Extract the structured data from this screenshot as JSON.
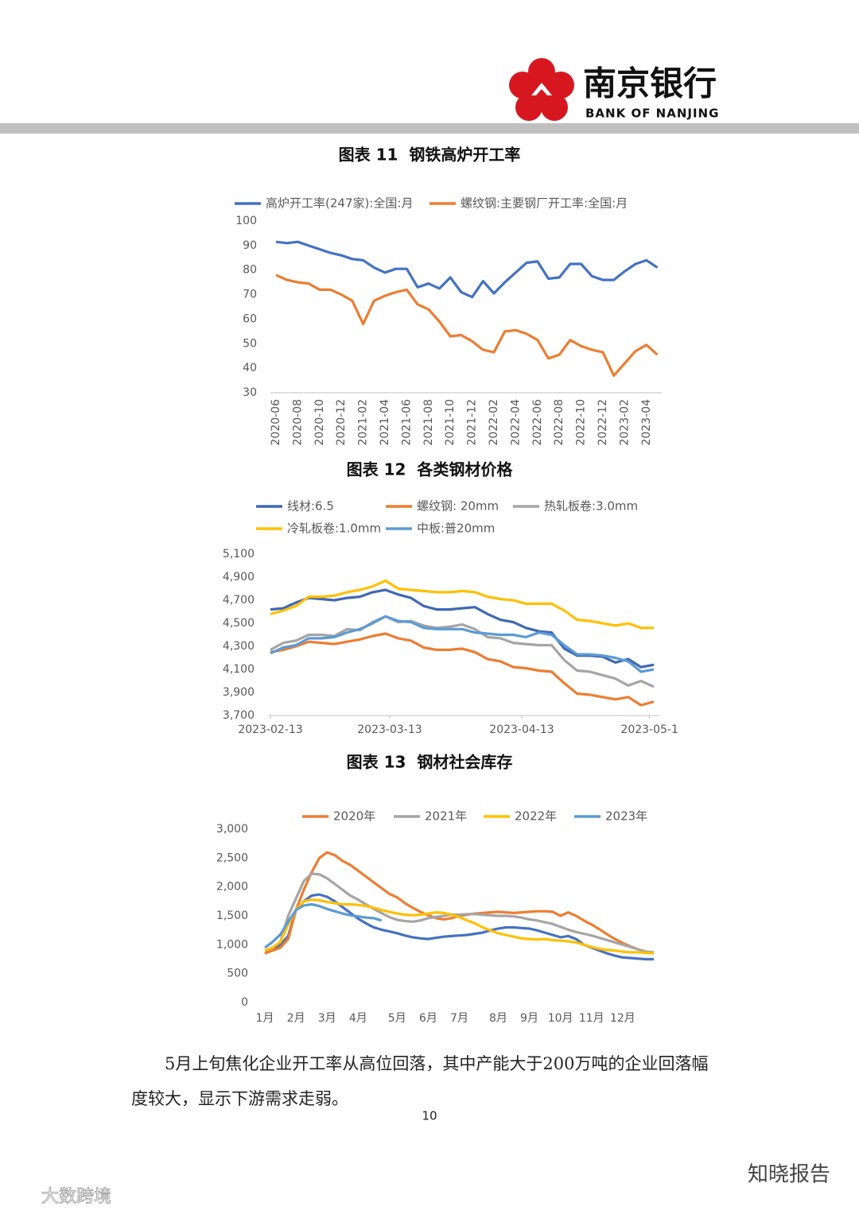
{
  "header": {
    "logo_cn": "南京银行",
    "logo_en": "BANK OF NANJING"
  },
  "chart_data": [
    {
      "type": "line",
      "title": "图表 11  钢铁高炉开工率",
      "categories": [
        "2020-06",
        null,
        "2020-08",
        null,
        "2020-10",
        null,
        "2020-12",
        null,
        "2021-02",
        null,
        "2021-04",
        null,
        "2021-06",
        null,
        "2021-08",
        null,
        "2021-10",
        null,
        "2021-12",
        null,
        "2022-02",
        null,
        "2022-04",
        null,
        "2022-06",
        null,
        "2022-08",
        null,
        "2022-10",
        null,
        "2022-12",
        null,
        "2023-02",
        null,
        "2023-04",
        null
      ],
      "series": [
        {
          "name": "高炉开工率(247家):全国:月",
          "color": "#4472c4",
          "values": [
            91.5,
            91,
            91.5,
            90,
            88.5,
            87,
            86,
            84.5,
            84,
            81,
            79,
            80.5,
            80.5,
            73,
            74.5,
            72.5,
            77,
            71,
            69,
            75.5,
            70.5,
            75,
            79,
            83,
            83.5,
            76.5,
            77,
            82.5,
            82.5,
            77.5,
            76,
            76,
            79.5,
            82.5,
            84,
            81
          ]
        },
        {
          "name": "螺纹钢:主要钢厂开工率:全国:月",
          "color": "#ed7d31",
          "values": [
            78,
            76,
            75,
            74.5,
            72,
            72,
            70,
            67.5,
            58,
            67.5,
            69.5,
            71,
            72,
            66,
            64,
            59,
            53,
            53.5,
            51,
            47.5,
            46.5,
            55,
            55.5,
            54,
            51.5,
            44,
            45.5,
            51.5,
            49,
            47.5,
            46.5,
            37,
            42,
            47,
            49.5,
            45.5
          ]
        }
      ],
      "ylim": [
        30,
        100
      ],
      "yticks": [
        30,
        40,
        50,
        60,
        70,
        80,
        90,
        100
      ],
      "grid": false,
      "legend": "top"
    },
    {
      "type": "line",
      "title": "图表 12  各类钢材价格",
      "x": [
        "2023-02-13",
        "2023-02-16",
        "2023-02-19",
        "2023-02-22",
        "2023-02-25",
        "2023-02-28",
        "2023-03-03",
        "2023-03-06",
        "2023-03-09",
        "2023-03-12",
        "2023-03-15",
        "2023-03-18",
        "2023-03-21",
        "2023-03-24",
        "2023-03-27",
        "2023-03-30",
        "2023-04-02",
        "2023-04-05",
        "2023-04-08",
        "2023-04-11",
        "2023-04-14",
        "2023-04-17",
        "2023-04-20",
        "2023-04-23",
        "2023-04-26",
        "2023-04-29",
        "2023-05-02",
        "2023-05-05",
        "2023-05-08",
        "2023-05-11",
        "2023-05-14"
      ],
      "xlim": [
        "2023-02-13",
        "2023-05-14"
      ],
      "xticks": [
        "2023-02-13",
        "2023-03-13",
        "2023-04-13",
        {
          "value": "2023-05-13",
          "label": "2023-05-1"
        }
      ],
      "series": [
        {
          "name": "线材:6.5",
          "color": "#3f68b5",
          "values": [
            4620,
            4630,
            4680,
            4720,
            4710,
            4700,
            4720,
            4730,
            4770,
            4790,
            4750,
            4720,
            4650,
            4620,
            4620,
            4630,
            4640,
            4580,
            4530,
            4510,
            4460,
            4430,
            4420,
            4280,
            4220,
            4220,
            4210,
            4160,
            4190,
            4120,
            4140
          ]
        },
        {
          "name": "螺纹钢: 20mm",
          "color": "#ed7d31",
          "values": [
            4250,
            4270,
            4300,
            4340,
            4330,
            4320,
            4340,
            4360,
            4390,
            4410,
            4370,
            4350,
            4290,
            4270,
            4270,
            4280,
            4250,
            4190,
            4170,
            4120,
            4110,
            4090,
            4080,
            3980,
            3890,
            3880,
            3860,
            3840,
            3860,
            3790,
            3820
          ]
        },
        {
          "name": "热轧板卷:3.0mm",
          "color": "#a5a5a5",
          "values": [
            4270,
            4330,
            4350,
            4400,
            4400,
            4390,
            4450,
            4440,
            4510,
            4560,
            4510,
            4520,
            4480,
            4460,
            4470,
            4490,
            4450,
            4380,
            4370,
            4330,
            4320,
            4310,
            4310,
            4180,
            4090,
            4080,
            4050,
            4020,
            3960,
            4000,
            3950
          ]
        },
        {
          "name": "冷轧板卷:1.0mm",
          "color": "#ffc000",
          "values": [
            4580,
            4610,
            4650,
            4730,
            4730,
            4740,
            4770,
            4790,
            4820,
            4870,
            4800,
            4790,
            4780,
            4770,
            4770,
            4780,
            4770,
            4730,
            4710,
            4700,
            4670,
            4670,
            4670,
            4610,
            4530,
            4520,
            4500,
            4480,
            4500,
            4460,
            4460
          ]
        },
        {
          "name": "中板:普20mm",
          "color": "#5b9bd5",
          "values": [
            4240,
            4290,
            4310,
            4370,
            4370,
            4380,
            4420,
            4450,
            4500,
            4560,
            4520,
            4510,
            4460,
            4450,
            4450,
            4450,
            4420,
            4410,
            4400,
            4400,
            4380,
            4420,
            4400,
            4310,
            4230,
            4230,
            4220,
            4200,
            4170,
            4080,
            4100
          ]
        }
      ],
      "ylim": [
        3700,
        5100
      ],
      "yticks": [
        {
          "value": 3700,
          "label": "3,700"
        },
        {
          "value": 3900,
          "label": "3,900"
        },
        {
          "value": 4100,
          "label": "4,100"
        },
        {
          "value": 4300,
          "label": "4,300"
        },
        {
          "value": 4500,
          "label": "4,500"
        },
        {
          "value": 4700,
          "label": "4,700"
        },
        {
          "value": 4900,
          "label": "4,900"
        },
        {
          "value": 5100,
          "label": "5,100"
        }
      ],
      "grid": false,
      "legend": "top"
    },
    {
      "type": "line",
      "title": "图表 13  钢材社会库存",
      "categories": [
        "1月",
        null,
        null,
        null,
        "2月",
        null,
        null,
        null,
        "3月",
        null,
        null,
        null,
        "4月",
        null,
        null,
        null,
        null,
        "5月",
        null,
        null,
        null,
        "6月",
        null,
        null,
        null,
        "7月",
        null,
        null,
        null,
        null,
        "8月",
        null,
        null,
        null,
        "9月",
        null,
        null,
        null,
        "10月",
        null,
        null,
        null,
        "11月",
        null,
        null,
        null,
        "12月",
        null,
        null,
        null,
        null
      ],
      "series": [
        {
          "color": "#4472c4",
          "values": [
            850,
            920,
            1000,
            1150,
            1600,
            1750,
            1850,
            1870,
            1830,
            1750,
            1650,
            1550,
            1450,
            1370,
            1300,
            1260,
            1230,
            1200,
            1160,
            1130,
            1110,
            1100,
            1120,
            1140,
            1150,
            1160,
            1170,
            1190,
            1210,
            1250,
            1280,
            1300,
            1300,
            1290,
            1280,
            1250,
            1210,
            1170,
            1130,
            1150,
            1100,
            1000,
            950,
            900,
            850,
            810,
            780,
            770,
            760,
            750,
            750
          ]
        },
        {
          "name": "2020年",
          "color": "#ed7d31",
          "values": [
            850,
            900,
            950,
            1100,
            1600,
            1950,
            2250,
            2500,
            2600,
            2550,
            2450,
            2380,
            2280,
            2180,
            2080,
            1980,
            1880,
            1820,
            1720,
            1640,
            1570,
            1510,
            1460,
            1440,
            1460,
            1500,
            1520,
            1540,
            1550,
            1560,
            1570,
            1560,
            1550,
            1560,
            1570,
            1580,
            1580,
            1570,
            1500,
            1560,
            1500,
            1420,
            1350,
            1270,
            1180,
            1100,
            1030,
            970,
            920,
            880,
            850
          ]
        },
        {
          "name": "2021年",
          "color": "#a5a5a5",
          "values": [
            900,
            950,
            1050,
            1500,
            1800,
            2100,
            2230,
            2220,
            2150,
            2050,
            1950,
            1850,
            1780,
            1700,
            1620,
            1550,
            1480,
            1430,
            1410,
            1400,
            1420,
            1460,
            1480,
            1500,
            1520,
            1520,
            1530,
            1530,
            1520,
            1510,
            1500,
            1500,
            1490,
            1470,
            1440,
            1420,
            1390,
            1360,
            1310,
            1260,
            1220,
            1190,
            1160,
            1120,
            1080,
            1040,
            1000,
            960,
            920,
            880,
            870
          ]
        },
        {
          "name": "2022年",
          "color": "#ffc000",
          "values": [
            900,
            950,
            1050,
            1350,
            1600,
            1750,
            1780,
            1770,
            1740,
            1720,
            1700,
            1700,
            1690,
            1670,
            1640,
            1600,
            1570,
            1540,
            1520,
            1510,
            1520,
            1540,
            1560,
            1550,
            1520,
            1480,
            1420,
            1370,
            1300,
            1250,
            1200,
            1170,
            1140,
            1110,
            1100,
            1090,
            1100,
            1080,
            1070,
            1060,
            1040,
            1000,
            960,
            930,
            910,
            900,
            880,
            870,
            870,
            860,
            850
          ]
        },
        {
          "name": "2023年",
          "color": "#5b9bd5",
          "values": [
            950,
            1050,
            1180,
            1400,
            1600,
            1680,
            1700,
            1670,
            1620,
            1580,
            1540,
            1510,
            1490,
            1470,
            1460,
            1420,
            null,
            null,
            null,
            null,
            null,
            null,
            null,
            null,
            null,
            null,
            null,
            null,
            null,
            null,
            null,
            null,
            null,
            null,
            null,
            null,
            null,
            null,
            null,
            null,
            null,
            null,
            null,
            null,
            null,
            null,
            null,
            null,
            null,
            null,
            null
          ]
        }
      ],
      "ylim": [
        0,
        3000
      ],
      "yticks": [
        0,
        500,
        {
          "value": 1000,
          "label": "1,000"
        },
        {
          "value": 1500,
          "label": "1,500"
        },
        {
          "value": 2000,
          "label": "2,000"
        },
        {
          "value": 2500,
          "label": "2,500"
        },
        {
          "value": 3000,
          "label": "3,000"
        }
      ],
      "grid": false,
      "legend": "top"
    }
  ],
  "paragraph": "5月上旬焦化企业开工率从高位回落，其中产能大于200万吨的企业回落幅度较大，显示下游需求走弱。",
  "page_number": "10",
  "watermarks": [
    "知晓报告",
    "大数跨境"
  ]
}
